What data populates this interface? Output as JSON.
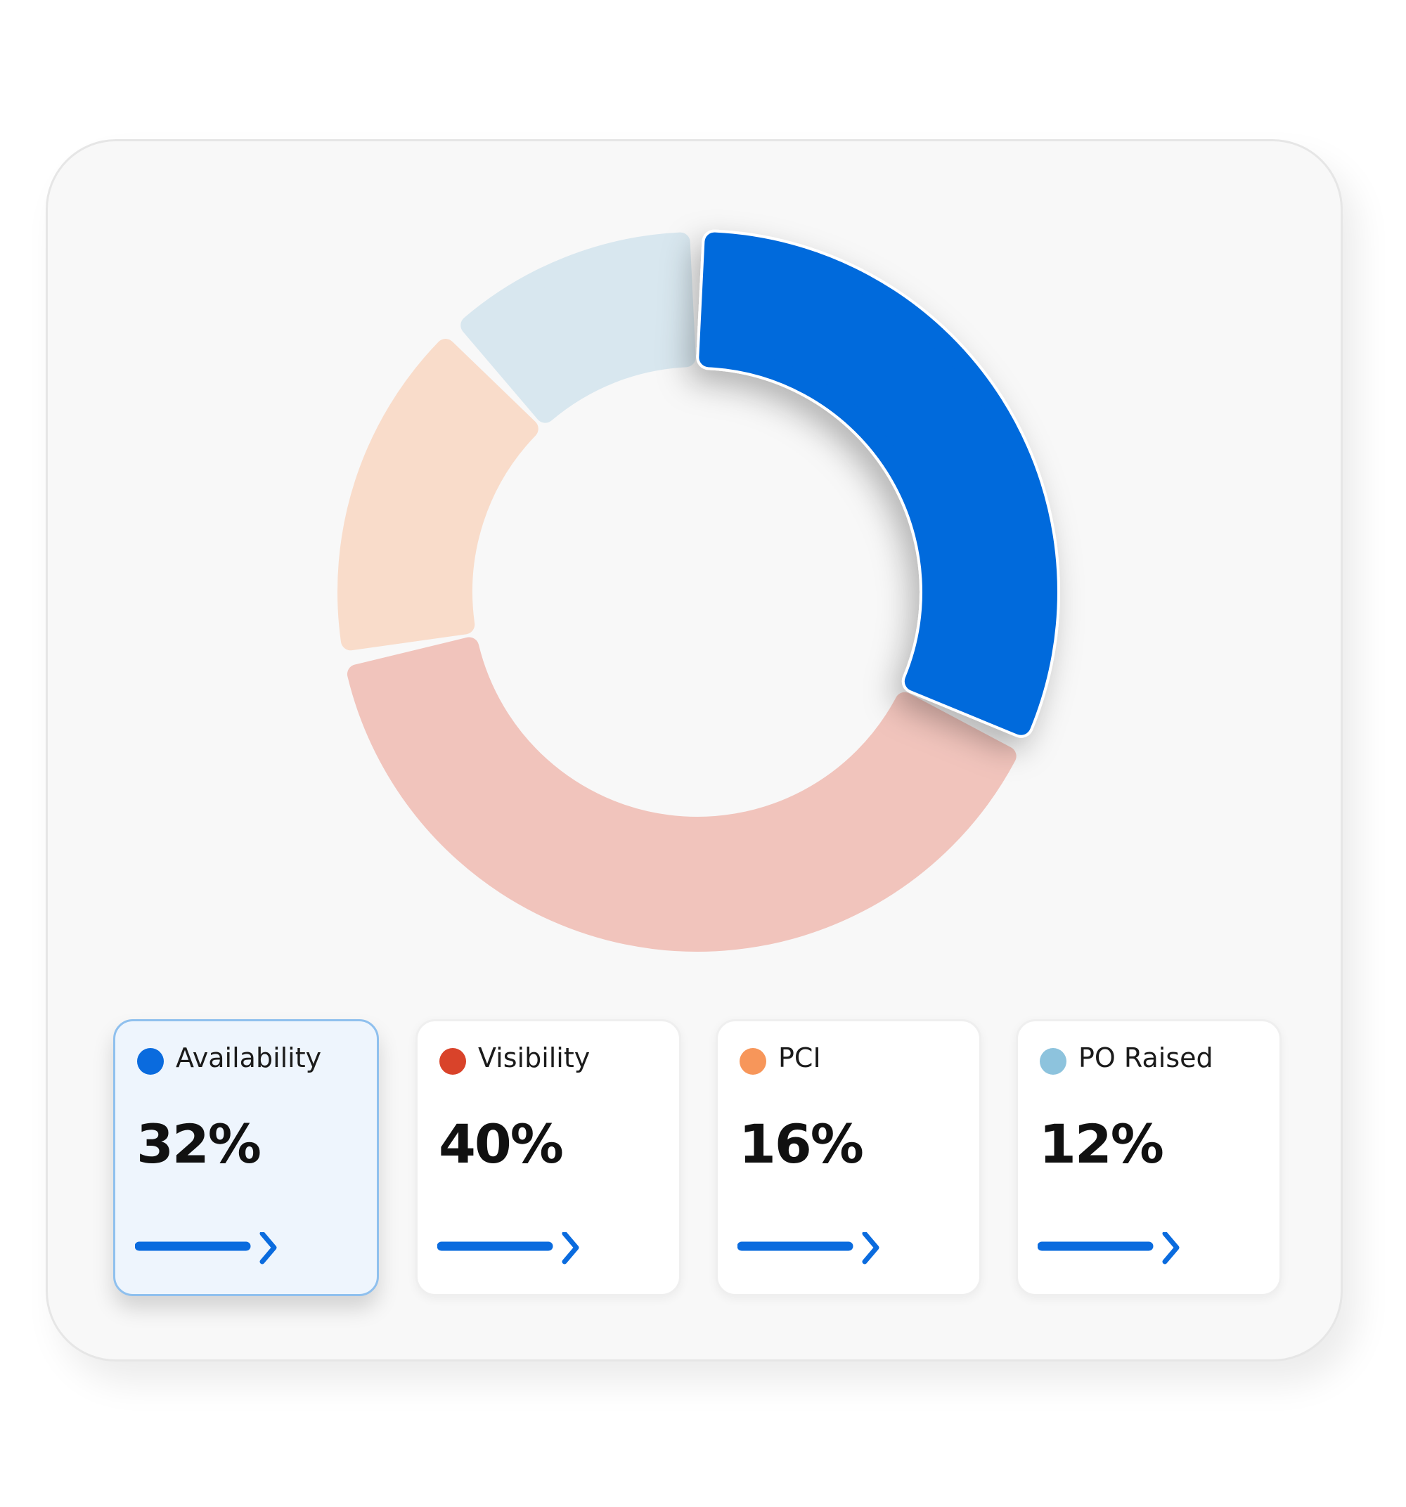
{
  "chart_data": {
    "type": "donut",
    "categories": [
      "Availability",
      "Visibility",
      "PCI",
      "PO Raised"
    ],
    "values": [
      32,
      40,
      16,
      12
    ],
    "value_labels": [
      "32%",
      "40%",
      "16%",
      "12%"
    ],
    "colors": [
      "#0A6BDE",
      "#D9432A",
      "#F7965A",
      "#8DC3DD"
    ],
    "segment_colors": [
      "#006ADC",
      "#F1C4BC",
      "#F9DCCA",
      "#D8E7EF"
    ],
    "highlight": 0
  }
}
